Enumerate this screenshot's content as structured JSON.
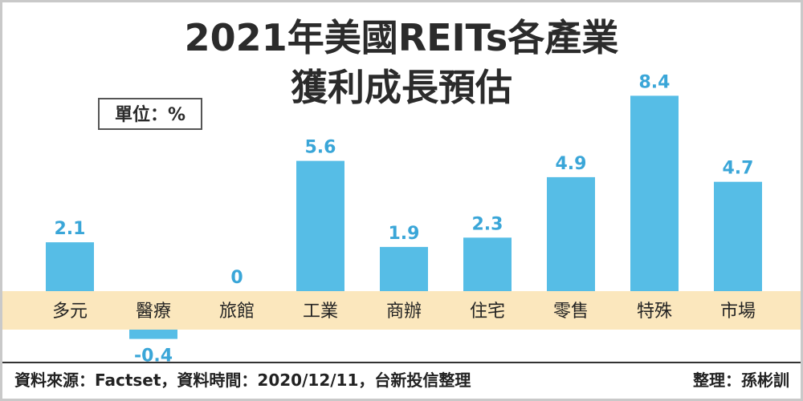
{
  "chart_data": {
    "type": "bar",
    "title_line1": "2021年美國REITs各產業",
    "title_line2": "獲利成長預估",
    "unit": "單位：%",
    "categories": [
      "多元",
      "醫療",
      "旅館",
      "工業",
      "商辦",
      "住宅",
      "零售",
      "特殊",
      "市場"
    ],
    "values": [
      2.1,
      -0.4,
      0,
      5.6,
      1.9,
      2.3,
      4.9,
      8.4,
      4.7
    ],
    "value_labels": [
      "2.1",
      "-0.4",
      "0",
      "5.6",
      "1.9",
      "2.3",
      "4.9",
      "8.4",
      "4.7"
    ],
    "bar_color": "#56bde6",
    "label_color": "#3aa6d8",
    "band_color": "#fbe7bd"
  },
  "footer": {
    "source": "資料來源：Factset，資料時間：2020/12/11，台新投信整理",
    "editor": "整理：孫彬訓"
  }
}
